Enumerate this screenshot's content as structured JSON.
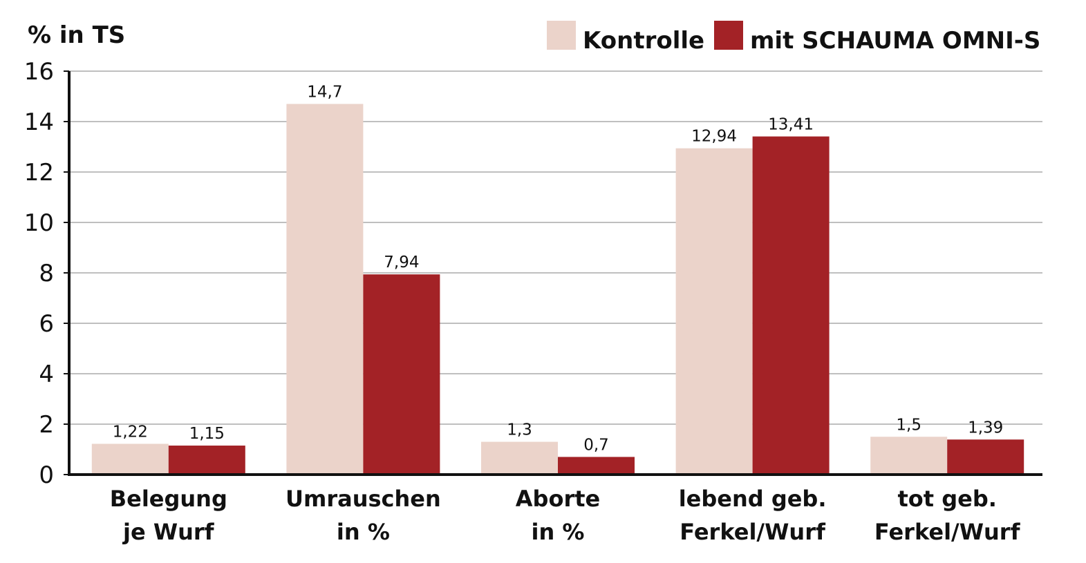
{
  "chart_data": {
    "type": "bar",
    "y_label": "% in TS",
    "categories": [
      "Belegung\nje Wurf",
      "Umrauschen\nin %",
      "Aborte\nin %",
      "lebend geb.\nFerkel/Wurf",
      "tot geb.\nFerkel/Wurf"
    ],
    "series": [
      {
        "name": "Kontrolle",
        "color": "#ebd3ca",
        "values": [
          1.22,
          14.7,
          1.3,
          12.94,
          1.5
        ],
        "value_labels": [
          "1,22",
          "14,7",
          "1,3",
          "12,94",
          "1,5"
        ]
      },
      {
        "name": "mit SCHAUMA OMNI-S",
        "color": "#a32226",
        "values": [
          1.15,
          7.94,
          0.7,
          13.41,
          1.39
        ],
        "value_labels": [
          "1,15",
          "7,94",
          "0,7",
          "13,41",
          "1,39"
        ]
      }
    ],
    "ylim": [
      0,
      16
    ],
    "yticks": [
      0,
      2,
      4,
      6,
      8,
      10,
      12,
      14,
      16
    ],
    "grid": true
  }
}
